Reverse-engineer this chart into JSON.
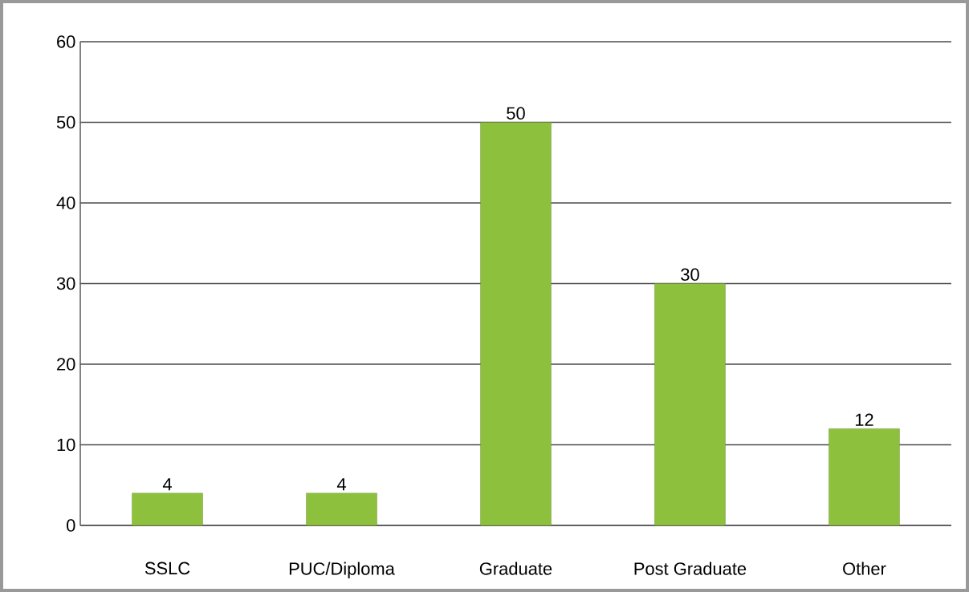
{
  "chart_data": {
    "type": "bar",
    "categories": [
      "SSLC",
      "PUC/Diploma",
      "Graduate",
      "Post Graduate",
      "Other"
    ],
    "values": [
      4,
      4,
      50,
      30,
      12
    ],
    "color": "#8dc03c",
    "ylim": [
      0,
      60
    ],
    "yticks": [
      0,
      10,
      20,
      30,
      40,
      50,
      60
    ],
    "grid": "y",
    "data_labels": true
  }
}
